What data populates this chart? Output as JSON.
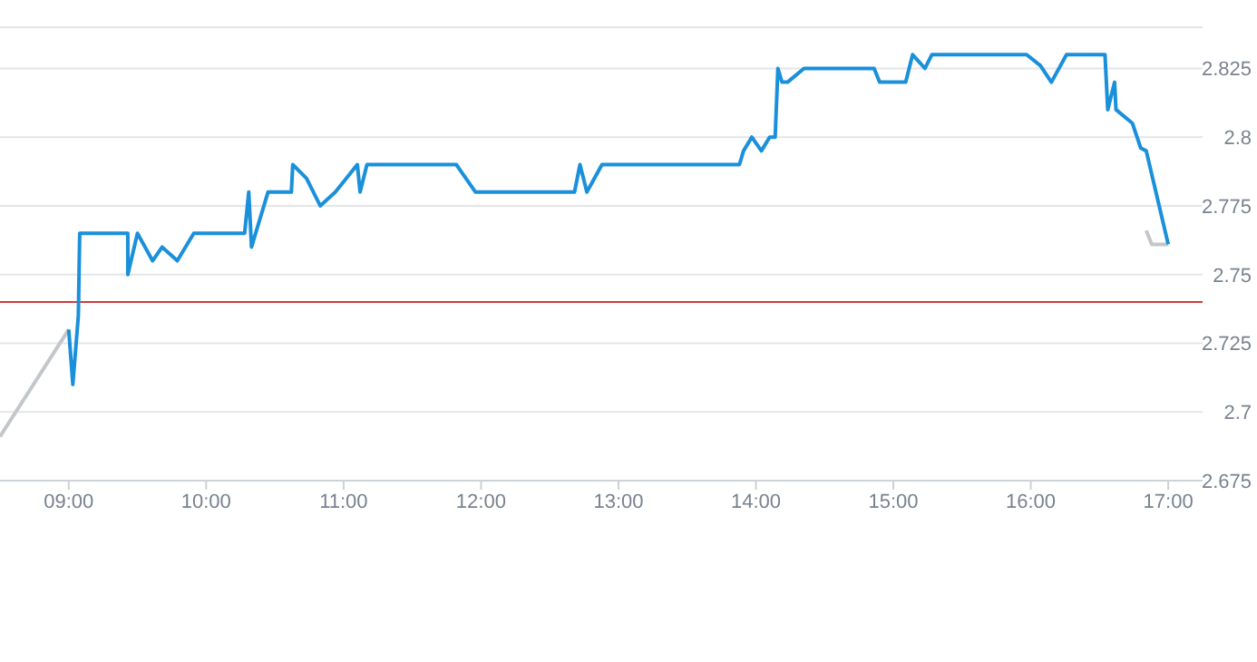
{
  "chart_data": {
    "type": "line",
    "xlim": [
      8.5,
      17.25
    ],
    "ylim": [
      2.675,
      2.84
    ],
    "xticks": [
      {
        "value": 9,
        "label": "09:00"
      },
      {
        "value": 10,
        "label": "10:00"
      },
      {
        "value": 11,
        "label": "11:00"
      },
      {
        "value": 12,
        "label": "12:00"
      },
      {
        "value": 13,
        "label": "13:00"
      },
      {
        "value": 14,
        "label": "14:00"
      },
      {
        "value": 15,
        "label": "15:00"
      },
      {
        "value": 16,
        "label": "16:00"
      },
      {
        "value": 17,
        "label": "17:00"
      }
    ],
    "yticks": [
      2.675,
      2.7,
      2.725,
      2.75,
      2.775,
      2.8,
      2.825
    ],
    "grid": "y",
    "legend": false,
    "marker": "none",
    "line_style": "solid",
    "ref_lines": [
      {
        "axis": "y",
        "value": 2.74,
        "label": null,
        "color": "#d23c3c"
      }
    ],
    "series": [
      {
        "color": "#c3c7cb",
        "x": [
          8.5,
          9.0
        ],
        "values": [
          2.691,
          2.73
        ]
      },
      {
        "color": "#c3c7cb",
        "x": [
          16.84,
          16.88,
          17.0
        ],
        "values": [
          2.766,
          2.761,
          2.761
        ]
      },
      {
        "color": "#1a90db",
        "x": [
          9.0,
          9.03,
          9.07,
          9.08,
          9.43,
          9.43,
          9.5,
          9.61,
          9.68,
          9.79,
          9.91,
          10.28,
          10.31,
          10.33,
          10.45,
          10.62,
          10.63,
          10.73,
          10.83,
          10.94,
          11.1,
          11.12,
          11.17,
          11.82,
          11.96,
          12.68,
          12.72,
          12.77,
          12.88,
          13.88,
          13.91,
          13.97,
          14.04,
          14.1,
          14.14,
          14.16,
          14.19,
          14.23,
          14.35,
          14.86,
          14.9,
          15.09,
          15.14,
          15.23,
          15.28,
          15.97,
          16.07,
          16.15,
          16.26,
          16.54,
          16.56,
          16.61,
          16.62,
          16.74,
          16.8,
          16.84,
          17.0
        ],
        "values": [
          2.73,
          2.71,
          2.735,
          2.765,
          2.765,
          2.75,
          2.765,
          2.755,
          2.76,
          2.755,
          2.765,
          2.765,
          2.78,
          2.76,
          2.78,
          2.78,
          2.79,
          2.785,
          2.775,
          2.78,
          2.79,
          2.78,
          2.79,
          2.79,
          2.78,
          2.78,
          2.79,
          2.78,
          2.79,
          2.79,
          2.795,
          2.8,
          2.795,
          2.8,
          2.8,
          2.825,
          2.82,
          2.82,
          2.825,
          2.825,
          2.82,
          2.82,
          2.83,
          2.825,
          2.83,
          2.83,
          2.826,
          2.82,
          2.83,
          2.83,
          2.81,
          2.82,
          2.81,
          2.805,
          2.796,
          2.795,
          2.761
        ]
      }
    ]
  }
}
